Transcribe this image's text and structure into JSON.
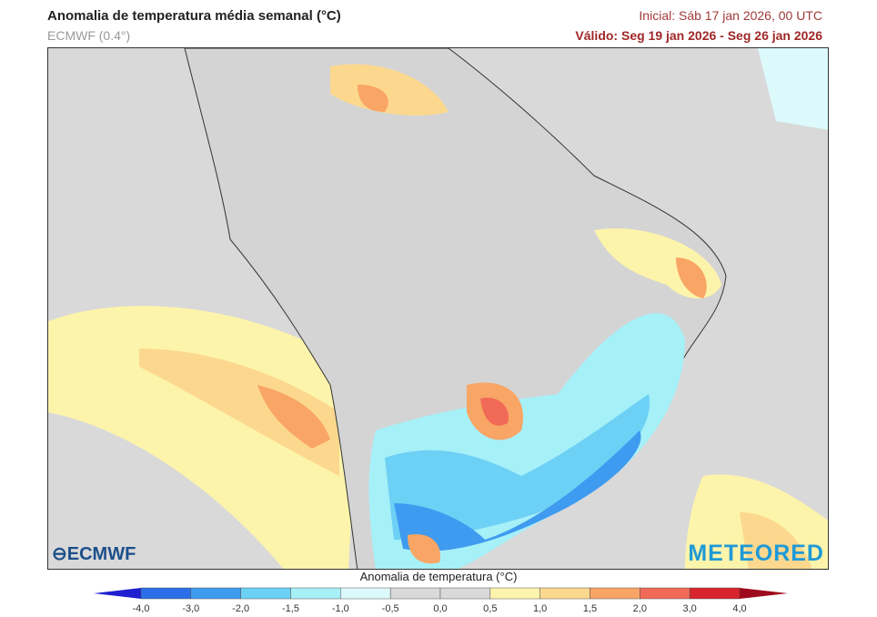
{
  "header": {
    "title": "Anomalia de temperatura média semanal (°C)",
    "model": "ECMWF (0.4°)",
    "initial": "Inicial: Sáb 17 jan 2026, 00 UTC",
    "valid": "Válido: Seg 19 jan 2026 - Seg 26 jan 2026"
  },
  "logos": {
    "left": "ECMWF",
    "right": "METEORED"
  },
  "colorbar": {
    "title": "Anomalia de temperatura (°C)",
    "ticks": [
      "-4,0",
      "-3,0",
      "-2,0",
      "-1,5",
      "-1,0",
      "-0,5",
      "0,0",
      "0,5",
      "1,0",
      "1,5",
      "2,0",
      "3,0",
      "4,0"
    ],
    "colors": [
      "#1f1fd0",
      "#2b6fe8",
      "#3f9bef",
      "#6dd0f5",
      "#a6f0f8",
      "#dcfafc",
      "#d9d9d9",
      "#d9d9d9",
      "#fdf4ab",
      "#fcd88e",
      "#f9a565",
      "#f16a58",
      "#d8242d",
      "#9e0a1d"
    ]
  }
}
